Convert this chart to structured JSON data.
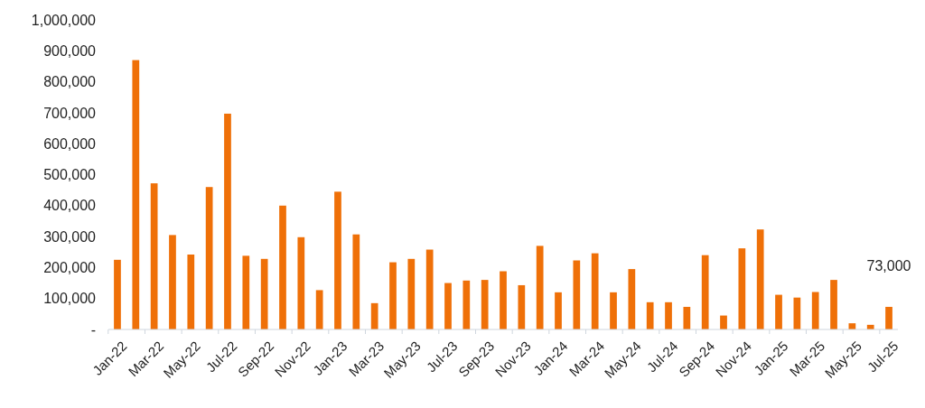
{
  "chart_data": {
    "type": "bar",
    "categories": [
      "Jan-22",
      null,
      "Mar-22",
      null,
      "May-22",
      null,
      "Jul-22",
      null,
      "Sep-22",
      null,
      "Nov-22",
      null,
      "Jan-23",
      null,
      "Mar-23",
      null,
      "May-23",
      null,
      "Jul-23",
      null,
      "Sep-23",
      null,
      "Nov-23",
      null,
      "Jan-24",
      null,
      "Mar-24",
      null,
      "May-24",
      null,
      "Jul-24",
      null,
      "Sep-24",
      null,
      "Nov-24",
      null,
      "Jan-25",
      null,
      "Mar-25",
      null,
      "May-25",
      null,
      "Jul-25"
    ],
    "values": [
      225000,
      870000,
      472000,
      305000,
      242000,
      460000,
      697000,
      238000,
      228000,
      400000,
      298000,
      127000,
      445000,
      307000,
      85000,
      217000,
      228000,
      258000,
      150000,
      158000,
      160000,
      188000,
      143000,
      270000,
      120000,
      223000,
      246000,
      120000,
      195000,
      88000,
      88000,
      73000,
      240000,
      45000,
      262000,
      323000,
      112000,
      103000,
      121000,
      160000,
      20000,
      15000,
      73000
    ],
    "value_labels": [
      null,
      null,
      null,
      null,
      null,
      null,
      null,
      null,
      null,
      null,
      null,
      null,
      null,
      null,
      null,
      null,
      null,
      null,
      null,
      null,
      null,
      null,
      null,
      null,
      null,
      null,
      null,
      null,
      null,
      null,
      null,
      null,
      null,
      null,
      null,
      null,
      null,
      null,
      null,
      null,
      null,
      null,
      "73,000"
    ],
    "color": "#ef7008",
    "ylim": [
      0,
      1000000
    ],
    "yticks": [
      {
        "value": 0,
        "label": "-"
      },
      {
        "value": 100000,
        "label": "100,000"
      },
      {
        "value": 200000,
        "label": "200,000"
      },
      {
        "value": 300000,
        "label": "300,000"
      },
      {
        "value": 400000,
        "label": "400,000"
      },
      {
        "value": 500000,
        "label": "500,000"
      },
      {
        "value": 600000,
        "label": "600,000"
      },
      {
        "value": 700000,
        "label": "700,000"
      },
      {
        "value": 800000,
        "label": "800,000"
      },
      {
        "value": 900000,
        "label": "900,000"
      },
      {
        "value": 1000000,
        "label": "1,000,000"
      }
    ],
    "grid": false
  }
}
